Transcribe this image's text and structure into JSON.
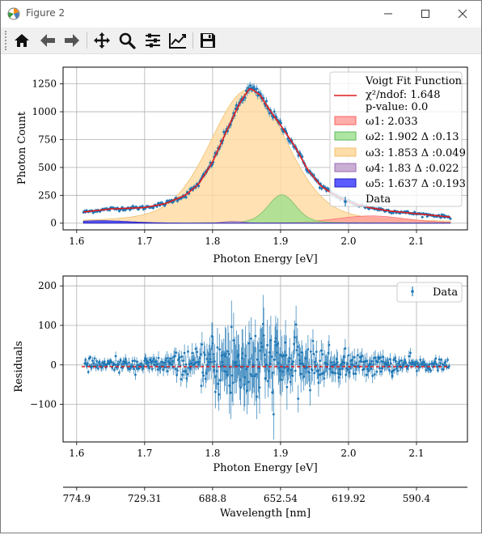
{
  "window": {
    "title": "Figure 2"
  },
  "toolbar": {
    "buttons": [
      "home-icon",
      "back-icon",
      "forward-icon",
      "pan-icon",
      "zoom-icon",
      "subplots-icon",
      "axes-edit-icon",
      "save-icon"
    ]
  },
  "colors": {
    "data": "#1f77b4",
    "fit": "#e41a1c",
    "w1": "#ff9896",
    "w2": "#98df8a",
    "w3": "#ffd9a0",
    "w4": "#c5a5cf",
    "w5": "#4040ff"
  },
  "chart_data": [
    {
      "type": "scatter",
      "title": "",
      "xlabel": "Photon Energy [eV]",
      "ylabel": "Photon Count",
      "xlim": [
        1.58,
        2.175
      ],
      "ylim": [
        -60,
        1400
      ],
      "xticks": [
        1.6,
        1.7,
        1.8,
        1.9,
        2.0,
        2.1
      ],
      "xtick_labels": [
        "1.6",
        "1.7",
        "1.8",
        "1.9",
        "2.0",
        "2.1"
      ],
      "yticks": [
        0,
        250,
        500,
        750,
        1000,
        1250
      ],
      "ytick_labels": [
        "0",
        "250",
        "500",
        "750",
        "1000",
        "1250"
      ],
      "grid": true,
      "legend_position": "top-right",
      "legend": {
        "fit_label": "Voigt Fit Function",
        "chi2_label": "χ²/ndof: 1.648",
        "pvalue_label": "p-value: 0.0",
        "omega1": "ω1: 2.033",
        "omega2": "ω2: 1.902 Δ :0.13",
        "omega3": "ω3: 1.853 Δ :0.049",
        "omega4": "ω4: 1.83 Δ :0.022",
        "omega5": "ω5: 1.637 Δ :0.193",
        "data_label": "Data"
      },
      "components": [
        {
          "name": "ω1",
          "center": 2.033,
          "amplitude": 65,
          "width": 0.05
        },
        {
          "name": "ω2",
          "center": 1.902,
          "amplitude": 255,
          "width": 0.02
        },
        {
          "name": "ω3",
          "center": 1.853,
          "amplitude": 1200,
          "width": 0.055
        },
        {
          "name": "ω4",
          "center": 1.83,
          "amplitude": 15,
          "width": 0.015
        },
        {
          "name": "ω5",
          "center": 1.637,
          "amplitude": 22,
          "width": 0.04
        }
      ],
      "data_x": [
        1.61,
        1.65,
        1.7,
        1.73,
        1.76,
        1.78,
        1.8,
        1.82,
        1.84,
        1.855,
        1.87,
        1.88,
        1.9,
        1.92,
        1.94,
        1.96,
        1.98,
        2.0,
        2.03,
        2.06,
        2.1,
        2.15
      ],
      "data_y": [
        100,
        128,
        140,
        175,
        250,
        355,
        550,
        820,
        1080,
        1215,
        1150,
        1050,
        880,
        700,
        480,
        330,
        250,
        190,
        140,
        110,
        85,
        55
      ]
    },
    {
      "type": "scatter",
      "title": "",
      "xlabel": "Photon Energy [eV]",
      "ylabel": "Residuals",
      "xlim": [
        1.58,
        2.175
      ],
      "ylim": [
        -195,
        225
      ],
      "xticks": [
        1.6,
        1.7,
        1.8,
        1.9,
        2.0,
        2.1
      ],
      "xtick_labels": [
        "1.6",
        "1.7",
        "1.8",
        "1.9",
        "2.0",
        "2.1"
      ],
      "yticks": [
        -100,
        0,
        100,
        200
      ],
      "ytick_labels": [
        "−100",
        "0",
        "100",
        "200"
      ],
      "grid": true,
      "legend_position": "top-right",
      "legend": {
        "data_label": "Data"
      },
      "residual_envelope_x": [
        1.61,
        1.7,
        1.78,
        1.82,
        1.86,
        1.9,
        1.95,
        2.0,
        2.1,
        2.15
      ],
      "residual_envelope": [
        15,
        20,
        40,
        110,
        120,
        90,
        55,
        35,
        20,
        12
      ],
      "secondary_axis": {
        "xlabel": "Wavelength [nm]",
        "tick_positions_ev": [
          1.6,
          1.7,
          1.8,
          1.9,
          2.0,
          2.1
        ],
        "tick_labels": [
          "774.9",
          "729.31",
          "688.8",
          "652.54",
          "619.92",
          "590.4"
        ]
      }
    }
  ]
}
